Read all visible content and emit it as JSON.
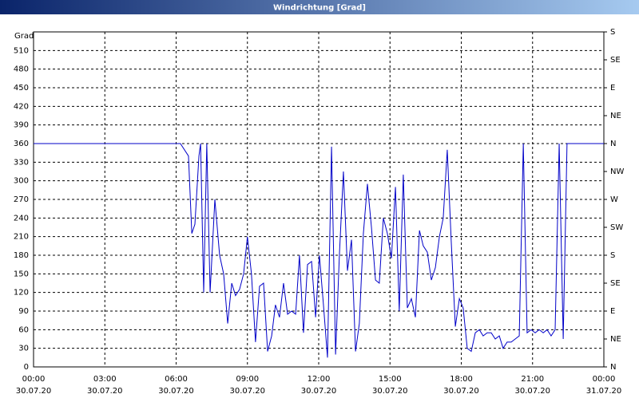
{
  "chart_data": {
    "type": "line",
    "title": "Windrichtung [Grad]",
    "y_label": "Grad",
    "x": [
      0,
      6.18,
      6.52,
      6.66,
      6.79,
      6.96,
      7.03,
      7.16,
      7.29,
      7.43,
      7.63,
      7.83,
      8.0,
      8.17,
      8.34,
      8.5,
      8.67,
      8.84,
      9.0,
      9.17,
      9.34,
      9.51,
      9.68,
      9.85,
      10.02,
      10.18,
      10.35,
      10.52,
      10.69,
      10.86,
      11.03,
      11.19,
      11.36,
      11.53,
      11.7,
      11.87,
      12.03,
      12.2,
      12.37,
      12.54,
      12.71,
      12.87,
      13.04,
      13.21,
      13.38,
      13.55,
      13.71,
      13.88,
      14.05,
      14.22,
      14.39,
      14.55,
      14.72,
      14.89,
      15.06,
      15.23,
      15.39,
      15.56,
      15.73,
      15.9,
      16.07,
      16.24,
      16.4,
      16.57,
      16.74,
      16.91,
      17.08,
      17.24,
      17.41,
      17.58,
      17.75,
      17.92,
      18.08,
      18.25,
      18.42,
      18.59,
      18.76,
      18.92,
      19.09,
      19.26,
      19.43,
      19.6,
      19.76,
      19.93,
      20.1,
      20.27,
      20.44,
      20.61,
      20.77,
      20.94,
      21.11,
      21.28,
      21.45,
      21.61,
      21.78,
      21.95,
      22.12,
      22.29,
      22.45,
      24
    ],
    "series": [
      {
        "name": "Windrichtung",
        "color": "#0000c8",
        "values": [
          360,
          360,
          340,
          215,
          230,
          340,
          360,
          120,
          360,
          120,
          270,
          180,
          150,
          70,
          135,
          115,
          125,
          150,
          210,
          150,
          40,
          130,
          135,
          25,
          50,
          100,
          80,
          135,
          85,
          90,
          85,
          180,
          55,
          165,
          170,
          80,
          180,
          100,
          15,
          355,
          20,
          180,
          315,
          155,
          205,
          25,
          70,
          215,
          295,
          225,
          140,
          135,
          240,
          215,
          175,
          290,
          90,
          310,
          95,
          110,
          80,
          220,
          195,
          185,
          140,
          160,
          210,
          240,
          350,
          200,
          65,
          110,
          95,
          30,
          25,
          55,
          60,
          50,
          55,
          55,
          45,
          50,
          30,
          40,
          40,
          45,
          50,
          360,
          55,
          60,
          55,
          60,
          55,
          60,
          50,
          60,
          360,
          45,
          360,
          360
        ]
      }
    ],
    "xlim": [
      0,
      24
    ],
    "xticks": [
      {
        "value": 0,
        "label": "00:00"
      },
      {
        "value": 3,
        "label": "03:00"
      },
      {
        "value": 6,
        "label": "06:00"
      },
      {
        "value": 9,
        "label": "09:00"
      },
      {
        "value": 12,
        "label": "12:00"
      },
      {
        "value": 15,
        "label": "15:00"
      },
      {
        "value": 18,
        "label": "18:00"
      },
      {
        "value": 21,
        "label": "21:00"
      },
      {
        "value": 24,
        "label": "00:00"
      }
    ],
    "xtick_dates": [
      "30.07.20",
      "30.07.20",
      "30.07.20",
      "30.07.20",
      "30.07.20",
      "30.07.20",
      "30.07.20",
      "30.07.20",
      "31.07.20"
    ],
    "ylim": [
      0,
      540
    ],
    "yticks": [
      0,
      30,
      60,
      90,
      120,
      150,
      180,
      210,
      240,
      270,
      300,
      330,
      360,
      390,
      420,
      450,
      480,
      510
    ],
    "y2lim": [
      0,
      540
    ],
    "y2ticks": [
      {
        "value": 0,
        "label": "N"
      },
      {
        "value": 45,
        "label": "NE"
      },
      {
        "value": 90,
        "label": "E"
      },
      {
        "value": 135,
        "label": "SE"
      },
      {
        "value": 180,
        "label": "S"
      },
      {
        "value": 225,
        "label": "SW"
      },
      {
        "value": 270,
        "label": "W"
      },
      {
        "value": 315,
        "label": "NW"
      },
      {
        "value": 360,
        "label": "N"
      },
      {
        "value": 405,
        "label": "NE"
      },
      {
        "value": 450,
        "label": "E"
      },
      {
        "value": 495,
        "label": "SE"
      },
      {
        "value": 540,
        "label": "S"
      }
    ],
    "grid": true
  }
}
